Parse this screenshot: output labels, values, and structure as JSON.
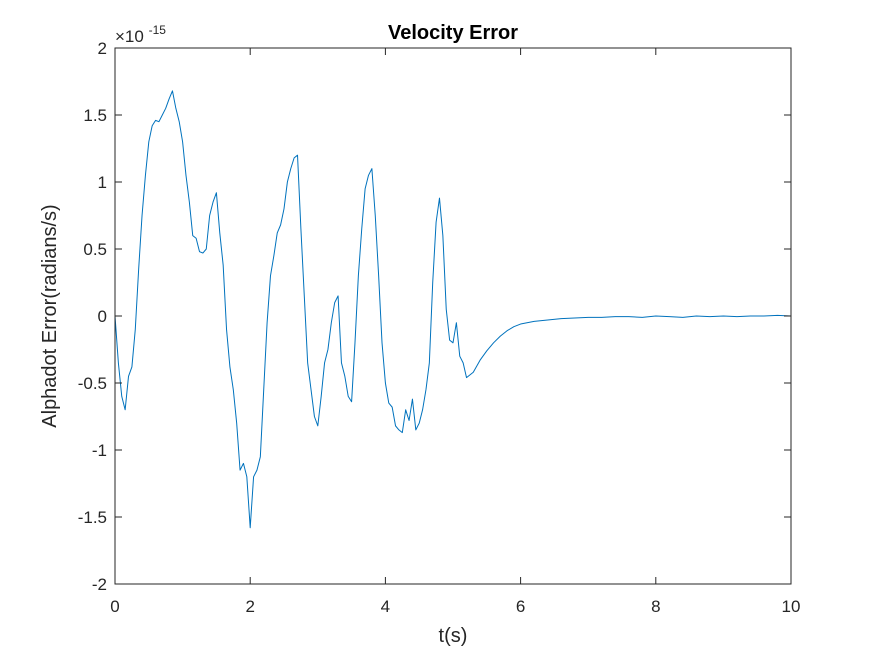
{
  "chart_data": {
    "type": "line",
    "title": "Velocity Error",
    "xlabel": "t(s)",
    "ylabel": "Alphadot Error(radians/s)",
    "xlim": [
      0,
      10
    ],
    "ylim": [
      -2,
      2
    ],
    "xticks": [
      0,
      2,
      4,
      6,
      8,
      10
    ],
    "xtick_labels": [
      "0",
      "2",
      "4",
      "6",
      "8",
      "10"
    ],
    "yticks": [
      -2,
      -1.5,
      -1,
      -0.5,
      0,
      0.5,
      1,
      1.5,
      2
    ],
    "ytick_labels": [
      "-2",
      "-1.5",
      "-1",
      "-0.5",
      "0",
      "0.5",
      "1",
      "1.5",
      "2"
    ],
    "y_exponent_base": "×10",
    "y_exponent_power": "-15",
    "grid": false,
    "series": [
      {
        "color": "#0072BD",
        "x": [
          0,
          0.05,
          0.1,
          0.15,
          0.2,
          0.25,
          0.3,
          0.35,
          0.4,
          0.45,
          0.5,
          0.55,
          0.6,
          0.65,
          0.7,
          0.75,
          0.8,
          0.85,
          0.9,
          0.95,
          1.0,
          1.05,
          1.1,
          1.15,
          1.2,
          1.25,
          1.3,
          1.35,
          1.4,
          1.45,
          1.5,
          1.55,
          1.6,
          1.65,
          1.7,
          1.75,
          1.8,
          1.85,
          1.9,
          1.95,
          2.0,
          2.05,
          2.1,
          2.15,
          2.2,
          2.25,
          2.3,
          2.35,
          2.4,
          2.45,
          2.5,
          2.55,
          2.6,
          2.65,
          2.7,
          2.75,
          2.8,
          2.85,
          2.9,
          2.95,
          3.0,
          3.05,
          3.1,
          3.15,
          3.2,
          3.25,
          3.3,
          3.35,
          3.4,
          3.45,
          3.5,
          3.55,
          3.6,
          3.65,
          3.7,
          3.75,
          3.8,
          3.85,
          3.9,
          3.95,
          4.0,
          4.05,
          4.1,
          4.15,
          4.2,
          4.25,
          4.3,
          4.35,
          4.4,
          4.45,
          4.5,
          4.55,
          4.6,
          4.65,
          4.7,
          4.75,
          4.8,
          4.85,
          4.9,
          4.95,
          5.0,
          5.05,
          5.1,
          5.15,
          5.2,
          5.3,
          5.4,
          5.5,
          5.6,
          5.7,
          5.8,
          5.9,
          6.0,
          6.2,
          6.4,
          6.6,
          6.8,
          7.0,
          7.2,
          7.4,
          7.6,
          7.8,
          8.0,
          8.2,
          8.4,
          8.6,
          8.8,
          9.0,
          9.2,
          9.4,
          9.6,
          9.8,
          10.0
        ],
        "y": [
          0,
          -0.35,
          -0.6,
          -0.7,
          -0.45,
          -0.38,
          -0.1,
          0.35,
          0.75,
          1.05,
          1.3,
          1.42,
          1.46,
          1.45,
          1.5,
          1.55,
          1.62,
          1.68,
          1.55,
          1.45,
          1.3,
          1.05,
          0.85,
          0.6,
          0.58,
          0.48,
          0.47,
          0.5,
          0.75,
          0.85,
          0.92,
          0.62,
          0.38,
          -0.1,
          -0.38,
          -0.55,
          -0.8,
          -1.15,
          -1.1,
          -1.2,
          -1.58,
          -1.2,
          -1.15,
          -1.05,
          -0.55,
          -0.05,
          0.3,
          0.45,
          0.62,
          0.68,
          0.8,
          1.0,
          1.1,
          1.18,
          1.2,
          0.65,
          0.15,
          -0.35,
          -0.55,
          -0.75,
          -0.82,
          -0.6,
          -0.35,
          -0.25,
          -0.05,
          0.1,
          0.15,
          -0.35,
          -0.45,
          -0.6,
          -0.64,
          -0.2,
          0.3,
          0.65,
          0.95,
          1.05,
          1.1,
          0.75,
          0.3,
          -0.2,
          -0.5,
          -0.65,
          -0.68,
          -0.82,
          -0.85,
          -0.87,
          -0.7,
          -0.78,
          -0.62,
          -0.85,
          -0.8,
          -0.7,
          -0.55,
          -0.35,
          0.25,
          0.7,
          0.88,
          0.6,
          0.05,
          -0.18,
          -0.2,
          -0.05,
          -0.3,
          -0.35,
          -0.46,
          -0.42,
          -0.33,
          -0.26,
          -0.2,
          -0.15,
          -0.11,
          -0.08,
          -0.06,
          -0.04,
          -0.03,
          -0.02,
          -0.015,
          -0.01,
          -0.01,
          -0.005,
          -0.005,
          -0.01,
          0,
          -0.005,
          -0.01,
          0,
          -0.005,
          0,
          -0.005,
          0,
          0,
          0.005,
          0
        ]
      }
    ]
  }
}
